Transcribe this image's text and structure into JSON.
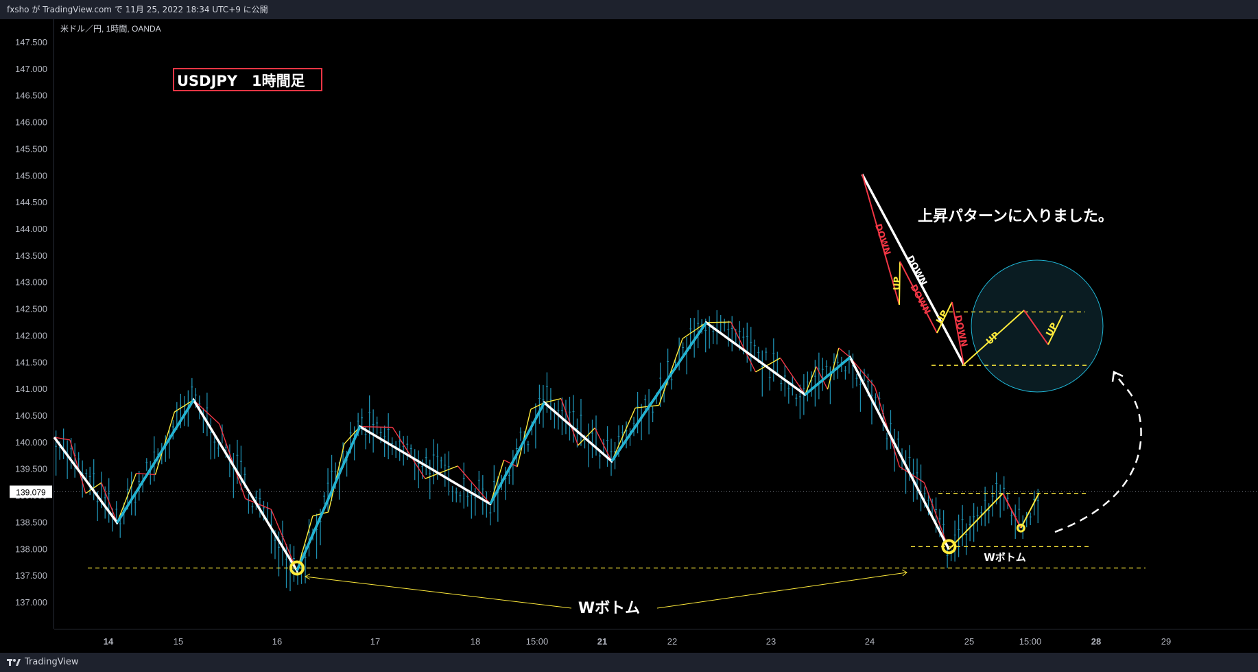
{
  "header": {
    "publish_text": "fxsho が TradingView.com で 11月 25, 2022 18:34 UTC+9 に公開"
  },
  "footer": {
    "brand": "TradingView",
    "logo_icon": "tradingview-logo-icon"
  },
  "colors": {
    "background": "#000000",
    "bar_up": "#26a69a",
    "bar_down": "#26a6c8",
    "zig_small": "#ffeb3b",
    "zig_down": "#f23645",
    "swing_white": "#ffffff",
    "swing_cyan": "#1fb3d3",
    "level": "#ffeb3b",
    "title_border": "#f23645",
    "circle": "#1fb3d3"
  },
  "chart_data": {
    "type": "line",
    "symbol": "米ドル／円, 1時間, OANDA",
    "title": "USDJPY　1時間足",
    "ylim": [
      136.4,
      147.9
    ],
    "y_ticks": [
      "147.500",
      "147.000",
      "146.500",
      "146.000",
      "145.500",
      "145.000",
      "144.500",
      "144.000",
      "143.500",
      "143.000",
      "142.500",
      "142.000",
      "141.500",
      "141.000",
      "140.500",
      "140.000",
      "139.500",
      "139.000",
      "138.500",
      "138.000",
      "137.500",
      "137.000"
    ],
    "x_ticks": [
      "14",
      "15",
      "16",
      "17",
      "18",
      "15:00",
      "21",
      "22",
      "23",
      "24",
      "25",
      "15:00",
      "28",
      "29"
    ],
    "x_ticks_bold": [
      "14",
      "21",
      "28"
    ],
    "current_price": "139.079",
    "annotations": {
      "w_bottom_main": "Wボトム",
      "w_bottom_small": "Wボトム",
      "uptrend_note": "上昇パターンに入りました。",
      "down_label": "DOWN",
      "up_label": "UP"
    },
    "swing_white": [
      [
        0.0,
        140.1
      ],
      [
        0.07,
        138.5
      ],
      [
        0.155,
        140.8
      ],
      [
        0.27,
        137.6
      ],
      [
        0.34,
        140.3
      ],
      [
        0.485,
        138.85
      ],
      [
        0.545,
        140.75
      ],
      [
        0.62,
        139.65
      ],
      [
        0.725,
        142.25
      ],
      [
        0.835,
        140.9
      ],
      [
        0.885,
        141.6
      ],
      [
        0.995,
        138.0
      ]
    ],
    "swing_cyan_segments": [
      [
        [
          0.07,
          138.5
        ],
        [
          0.155,
          140.8
        ]
      ],
      [
        [
          0.27,
          137.6
        ],
        [
          0.34,
          140.3
        ]
      ],
      [
        [
          0.485,
          138.85
        ],
        [
          0.545,
          140.75
        ]
      ],
      [
        [
          0.62,
          139.65
        ],
        [
          0.725,
          142.25
        ]
      ],
      [
        [
          0.835,
          140.9
        ],
        [
          0.885,
          141.6
        ]
      ]
    ],
    "recent_zig": [
      [
        0.995,
        138.0
      ],
      [
        1.055,
        139.05
      ],
      [
        1.075,
        138.4
      ],
      [
        1.095,
        139.05
      ]
    ],
    "levels": {
      "long_low": 137.65,
      "w_low": 138.05,
      "neck": 139.05,
      "circle_top": 142.45,
      "circle_bottom": 141.45
    }
  }
}
